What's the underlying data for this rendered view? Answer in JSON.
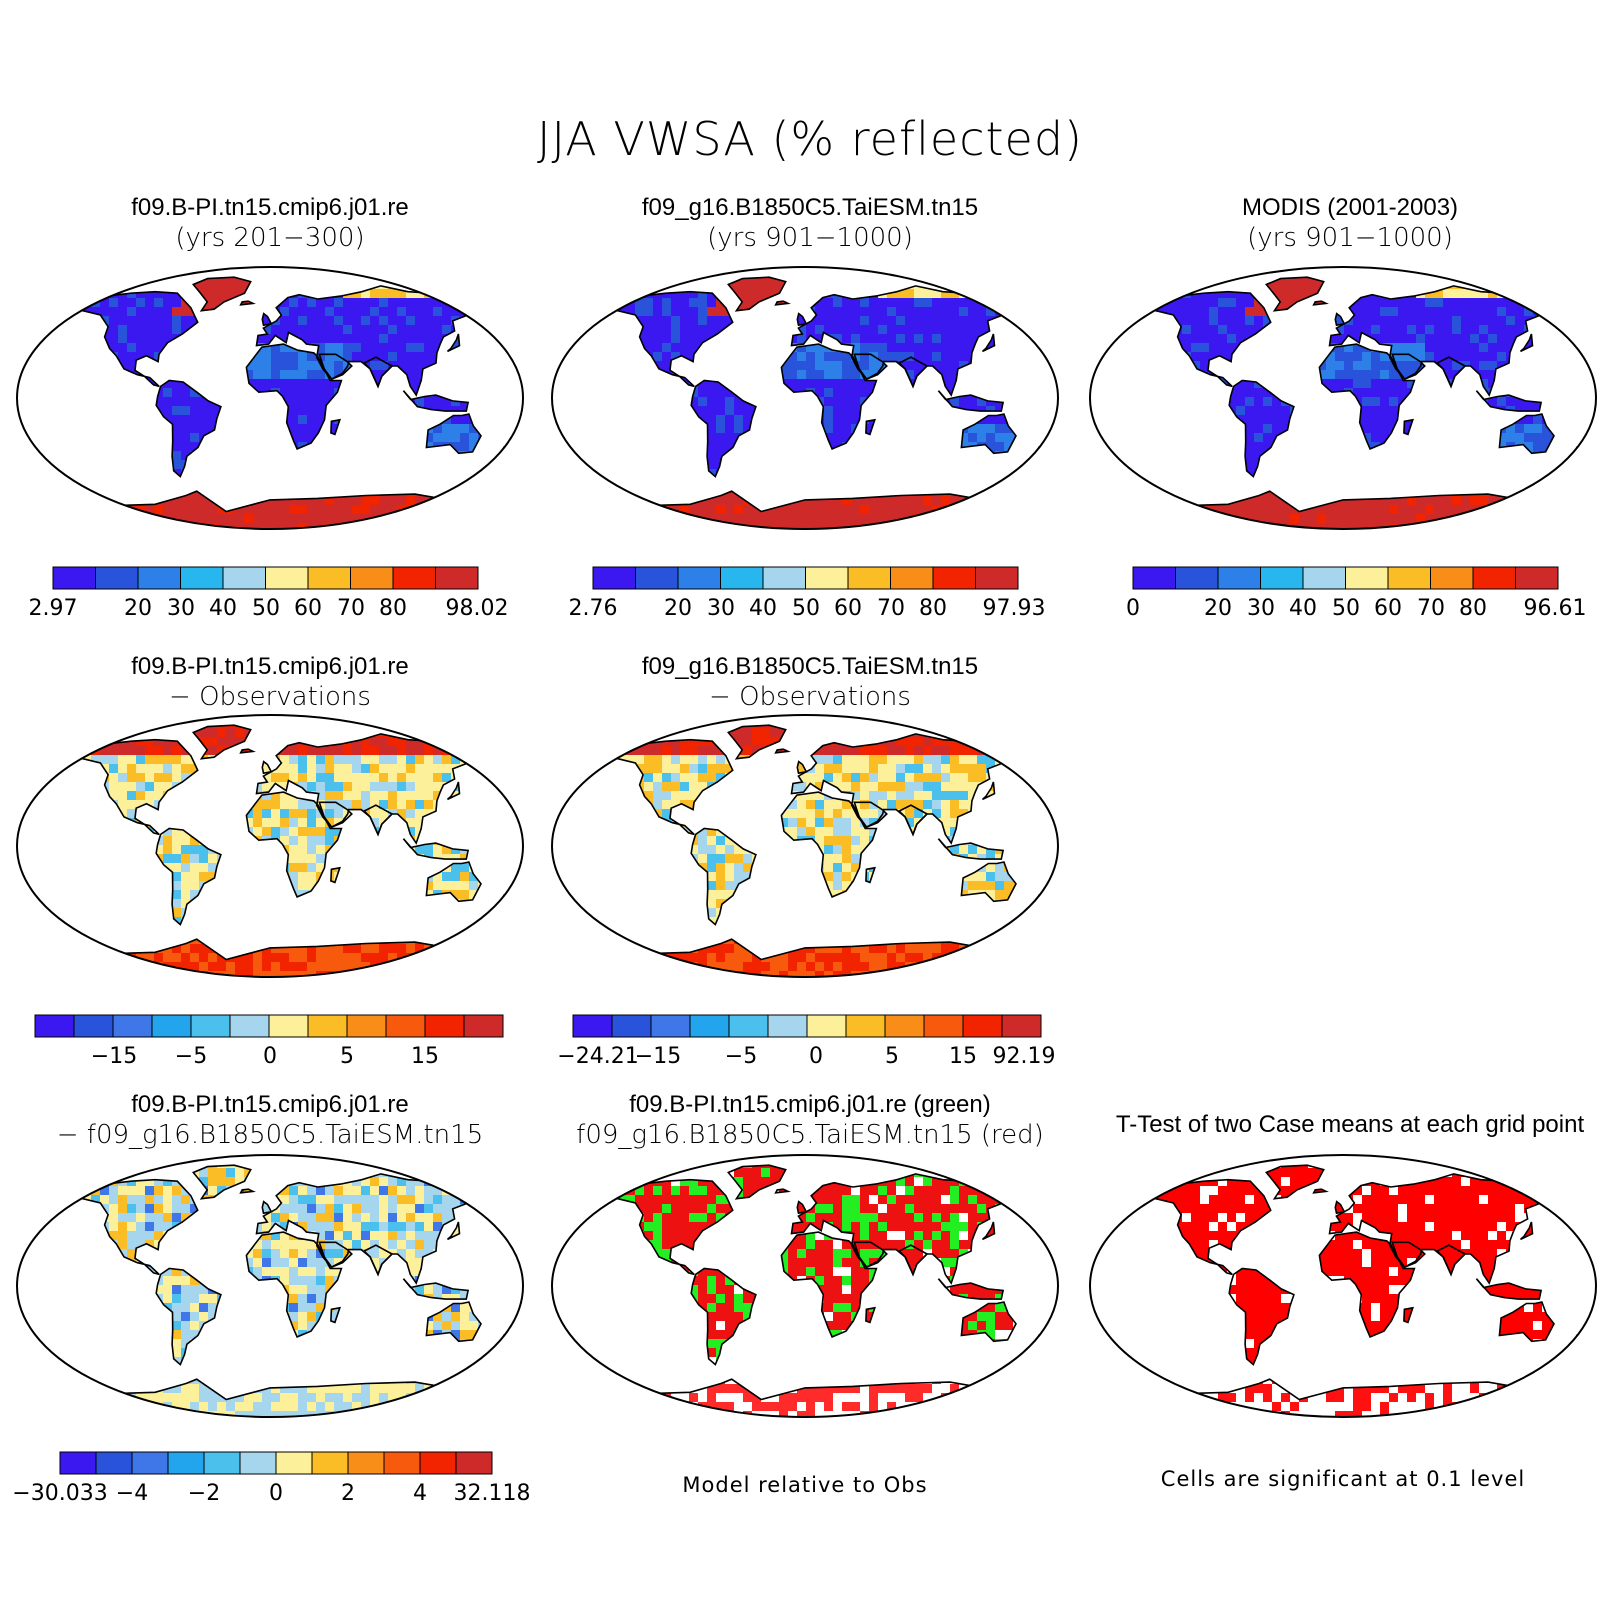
{
  "title": "JJA VWSA (% reflected)",
  "palettes": {
    "seq": [
      "#3b17f0",
      "#2a53dc",
      "#2c80e8",
      "#27b6ee",
      "#a6d5ee",
      "#fcf09a",
      "#fbbd25",
      "#f88d17",
      "#f22400",
      "#cf2a2a"
    ],
    "diff": [
      "#3b17f0",
      "#2a53dc",
      "#3f76e8",
      "#22a5ec",
      "#4cc0ec",
      "#a6d5ee",
      "#fcf09a",
      "#fbbd25",
      "#f88d17",
      "#f75a0c",
      "#f22400",
      "#cf2a2a"
    ],
    "ocean": "#ffffff",
    "land_outline": "#000000"
  },
  "panels": [
    {
      "id": "case1",
      "title_line1": "f09.B-PI.tn15.cmip6.j01.re",
      "title_line2": "(yrs 201−300)",
      "colorbar_labels": [
        "2.97",
        "20",
        "30",
        "40",
        "50",
        "60",
        "70",
        "80",
        "98.02"
      ]
    },
    {
      "id": "case2",
      "title_line1": "f09_g16.B1850C5.TaiESM.tn15",
      "title_line2": "(yrs 901−1000)",
      "colorbar_labels": [
        "2.76",
        "20",
        "30",
        "40",
        "50",
        "60",
        "70",
        "80",
        "97.93"
      ]
    },
    {
      "id": "obs",
      "title_line1": "MODIS (2001-2003)",
      "title_line2": "(yrs 901−1000)",
      "colorbar_labels": [
        "0",
        "20",
        "30",
        "40",
        "50",
        "60",
        "70",
        "80",
        "96.61"
      ]
    },
    {
      "id": "case1-obs",
      "title_line1": "f09.B-PI.tn15.cmip6.j01.re",
      "title_line2": "− Observations",
      "colorbar_labels": [
        "−15",
        "−5",
        "0",
        "5",
        "15"
      ]
    },
    {
      "id": "case2-obs",
      "title_line1": "f09_g16.B1850C5.TaiESM.tn15",
      "title_line2": "− Observations",
      "colorbar_labels": [
        "−24.21",
        "−15",
        "−5",
        "0",
        "5",
        "15",
        "92.19"
      ]
    },
    {
      "id": "case1-case2",
      "title_line1": "f09.B-PI.tn15.cmip6.j01.re",
      "title_line2": "− f09_g16.B1850C5.TaiESM.tn15",
      "colorbar_labels": [
        "−30.033",
        "−4",
        "−2",
        "0",
        "2",
        "4",
        "32.118"
      ]
    },
    {
      "id": "closer",
      "title_line1": "f09.B-PI.tn15.cmip6.j01.re (green)",
      "title_line2": "f09_g16.B1850C5.TaiESM.tn15 (red)",
      "note": "Model relative to Obs"
    },
    {
      "id": "ttest",
      "title_line1": "T-Test of two Case means at each grid point",
      "note": "Cells are significant at 0.1 level"
    }
  ]
}
